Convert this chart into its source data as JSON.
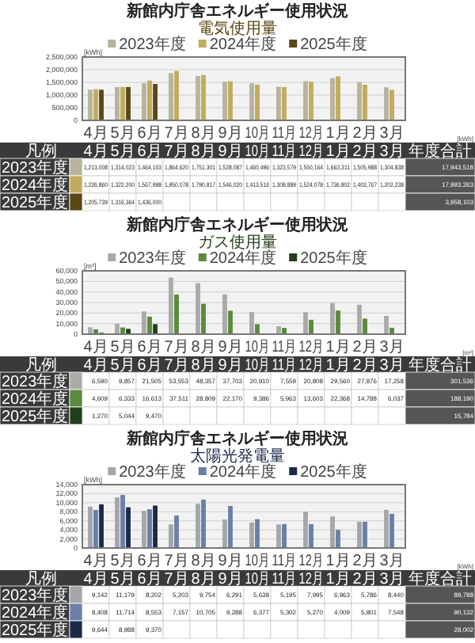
{
  "chart_data": [
    {
      "type": "bar",
      "title": "新館内庁舎エネルギー使用状況",
      "subtitle": "電気使用量",
      "ylabel": "[kWh]",
      "categories": [
        "4月",
        "5月",
        "6月",
        "7月",
        "8月",
        "9月",
        "10月",
        "11月",
        "12月",
        "1月",
        "2月",
        "3月"
      ],
      "series": [
        {
          "name": "2023年度",
          "color": "#b8b39c",
          "values": [
            1213008,
            1314023,
            1464103,
            1864620,
            1751301,
            1528087,
            1460496,
            1323579,
            1550164,
            1663311,
            1505988,
            1304838
          ],
          "value_labels": [
            "1,213,008",
            "1,314,023",
            "1,464,103",
            "1,864,620",
            "1,751,301",
            "1,528,087",
            "1,460,496",
            "1,323,579",
            "1,550,164",
            "1,663,311",
            "1,505,988",
            "1,304,838"
          ]
        },
        {
          "name": "2024年度",
          "color": "#c2ab5c",
          "values": [
            1226860,
            1322200,
            1567998,
            1950078,
            1790817,
            1546020,
            1413516,
            1308889,
            1524078,
            1736802,
            1403767,
            1202238
          ],
          "value_labels": [
            "1,226,860",
            "1,322,200",
            "1,567,998",
            "1,950,078",
            "1,790,817",
            "1,546,020",
            "1,413,516",
            "1,308,889",
            "1,524,078",
            "1,736,802",
            "1,403,767",
            "1,202,238"
          ]
        },
        {
          "name": "2025年度",
          "color": "#5a4714",
          "values": [
            1205739,
            1316364,
            1436000,
            null,
            null,
            null,
            null,
            null,
            null,
            null,
            null,
            null
          ],
          "value_labels": [
            "1,205,739",
            "1,316,364",
            "1,436,000",
            null,
            null,
            null,
            null,
            null,
            null,
            null,
            null,
            null
          ]
        }
      ],
      "ylim": [
        0,
        2500000
      ],
      "yticks": [
        {
          "value": 0,
          "label": "0"
        },
        {
          "value": 500000,
          "label": "500,000"
        },
        {
          "value": 1000000,
          "label": "1,000,000"
        },
        {
          "value": 1500000,
          "label": "1,500,000"
        },
        {
          "value": 2000000,
          "label": "2,000,000"
        },
        {
          "value": 2500000,
          "label": "2,500,000"
        }
      ],
      "grid": "y",
      "legend": "top",
      "annotations": [
        "[kWh]",
        "凡例",
        "年度合計",
        "17,943,518",
        "17,993,263",
        "3,958,103"
      ]
    },
    {
      "type": "bar",
      "title": "新館内庁舎エネルギー使用状況",
      "subtitle": "ガス使用量",
      "ylabel": "[m³]",
      "categories": [
        "4月",
        "5月",
        "6月",
        "7月",
        "8月",
        "9月",
        "10月",
        "11月",
        "12月",
        "1月",
        "2月",
        "3月"
      ],
      "series": [
        {
          "name": "2023年度",
          "color": "#a9aca6",
          "values": [
            6590,
            9857,
            21505,
            53553,
            48357,
            37703,
            20910,
            7559,
            20808,
            29560,
            27876,
            17258
          ],
          "value_labels": [
            "6,590",
            "9,857",
            "21,505",
            "53,553",
            "48,357",
            "37,703",
            "20,910",
            "7,559",
            "20,808",
            "29,560",
            "27,876",
            "17,258"
          ]
        },
        {
          "name": "2024年度",
          "color": "#5a8a3c",
          "values": [
            4609,
            6333,
            16613,
            37511,
            28809,
            22170,
            9386,
            5963,
            13603,
            22368,
            14788,
            6037
          ],
          "value_labels": [
            "4,609",
            "6,333",
            "16,613",
            "37,511",
            "28,809",
            "22,170",
            "9,386",
            "5,963",
            "13,603",
            "22,368",
            "14,788",
            "6,037"
          ]
        },
        {
          "name": "2025年度",
          "color": "#23401a",
          "values": [
            1270,
            5044,
            9470,
            null,
            null,
            null,
            null,
            null,
            null,
            null,
            null,
            null
          ],
          "value_labels": [
            "1,270",
            "5,044",
            "9,470",
            null,
            null,
            null,
            null,
            null,
            null,
            null,
            null,
            null
          ]
        }
      ],
      "ylim": [
        0,
        60000
      ],
      "yticks": [
        {
          "value": 0,
          "label": "0"
        },
        {
          "value": 10000,
          "label": "10,000"
        },
        {
          "value": 20000,
          "label": "20,000"
        },
        {
          "value": 30000,
          "label": "30,000"
        },
        {
          "value": 40000,
          "label": "40,000"
        },
        {
          "value": 50000,
          "label": "50,000"
        },
        {
          "value": 60000,
          "label": "60,000"
        }
      ],
      "grid": "y",
      "legend": "top",
      "annotations": [
        "[m³]",
        "凡例",
        "年度合計",
        "301,536",
        "188,190",
        "15,784"
      ]
    },
    {
      "type": "bar",
      "title": "新館内庁舎エネルギー使用状況",
      "subtitle": "太陽光発電量",
      "ylabel": "[kWh]",
      "categories": [
        "4月",
        "5月",
        "6月",
        "7月",
        "8月",
        "9月",
        "10月",
        "11月",
        "12月",
        "1月",
        "2月",
        "3月"
      ],
      "series": [
        {
          "name": "2023年度",
          "color": "#a3a6ab",
          "values": [
            9142,
            11179,
            8202,
            5203,
            9754,
            6291,
            5638,
            5195,
            7995,
            6963,
            5786,
            8440
          ],
          "value_labels": [
            "9,142",
            "11,179",
            "8,202",
            "5,203",
            "9,754",
            "6,291",
            "5,638",
            "5,195",
            "7,995",
            "6,963",
            "5,786",
            "8,440"
          ]
        },
        {
          "name": "2024年度",
          "color": "#6b7fa6",
          "values": [
            8408,
            11714,
            8553,
            7157,
            10705,
            9288,
            6377,
            5302,
            5270,
            4009,
            5801,
            7548
          ],
          "value_labels": [
            "8,408",
            "11,714",
            "8,553",
            "7,157",
            "10,705",
            "9,288",
            "6,377",
            "5,302",
            "5,270",
            "4,009",
            "5,801",
            "7,548"
          ]
        },
        {
          "name": "2025年度",
          "color": "#1c2a4a",
          "values": [
            9644,
            8988,
            9370,
            null,
            null,
            null,
            null,
            null,
            null,
            null,
            null,
            null
          ],
          "value_labels": [
            "9,644",
            "8,988",
            "9,370",
            null,
            null,
            null,
            null,
            null,
            null,
            null,
            null,
            null
          ]
        }
      ],
      "ylim": [
        0,
        14000
      ],
      "yticks": [
        {
          "value": 0,
          "label": "0"
        },
        {
          "value": 2000,
          "label": "2,000"
        },
        {
          "value": 4000,
          "label": "4,000"
        },
        {
          "value": 6000,
          "label": "6,000"
        },
        {
          "value": 8000,
          "label": "8,000"
        },
        {
          "value": 10000,
          "label": "10,000"
        },
        {
          "value": 12000,
          "label": "12,000"
        },
        {
          "value": 14000,
          "label": "14,000"
        }
      ],
      "grid": "y",
      "legend": "top",
      "annotations": [
        "[kWh]",
        "凡例",
        "年度合計",
        "89,788",
        "90,132",
        "28,002"
      ]
    }
  ]
}
